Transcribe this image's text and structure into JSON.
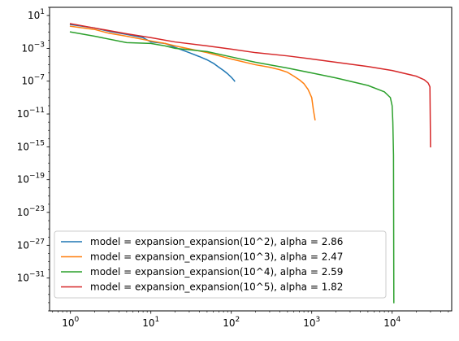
{
  "chart_data": {
    "type": "line",
    "xscale": "log",
    "yscale": "log",
    "xlim": [
      0.55,
      55000
    ],
    "ylim": [
      1e-35,
      100
    ],
    "grid": false,
    "legend_position": "lower-left",
    "x_ticks": [
      {
        "value": 1,
        "base": "10",
        "exp": "0"
      },
      {
        "value": 10,
        "base": "10",
        "exp": "1"
      },
      {
        "value": 100,
        "base": "10",
        "exp": "2"
      },
      {
        "value": 1000,
        "base": "10",
        "exp": "3"
      },
      {
        "value": 10000,
        "base": "10",
        "exp": "4"
      }
    ],
    "y_ticks": [
      {
        "value": 10,
        "base": "10",
        "exp": "1"
      },
      {
        "value": 0.001,
        "base": "10",
        "exp": "−3"
      },
      {
        "value": 1e-07,
        "base": "10",
        "exp": "−7"
      },
      {
        "value": 1e-11,
        "base": "10",
        "exp": "−11"
      },
      {
        "value": 1e-15,
        "base": "10",
        "exp": "−15"
      },
      {
        "value": 1e-19,
        "base": "10",
        "exp": "−19"
      },
      {
        "value": 1e-23,
        "base": "10",
        "exp": "−23"
      },
      {
        "value": 1e-27,
        "base": "10",
        "exp": "−27"
      },
      {
        "value": 1e-31,
        "base": "10",
        "exp": "−31"
      }
    ],
    "series": [
      {
        "name": "model = expansion_expansion(10^2), alpha = 2.86",
        "color": "#1f77b4",
        "x": [
          1,
          2,
          3,
          5,
          8,
          10,
          15,
          20,
          30,
          40,
          50,
          60,
          70,
          80,
          90,
          100,
          108,
          110
        ],
        "y": [
          0.8,
          0.3,
          0.12,
          0.05,
          0.02,
          0.006,
          0.004,
          0.0013,
          0.0003,
          0.0001,
          4e-05,
          1.5e-05,
          5e-06,
          2e-06,
          8e-07,
          3e-07,
          1.3e-07,
          1e-07
        ]
      },
      {
        "name": "model = expansion_expansion(10^3), alpha = 2.47",
        "color": "#ff7f0e",
        "x": [
          1,
          2,
          3,
          5,
          10,
          15,
          20,
          50,
          100,
          200,
          300,
          400,
          500,
          600,
          700,
          800,
          900,
          1000,
          1050,
          1100
        ],
        "y": [
          0.5,
          0.2,
          0.07,
          0.03,
          0.008,
          0.004,
          0.002,
          0.0003,
          5e-05,
          1e-05,
          5e-06,
          2.5e-06,
          1.2e-06,
          4e-07,
          1.5e-07,
          5e-08,
          1e-08,
          1e-09,
          3e-11,
          2e-12
        ]
      },
      {
        "name": "model = expansion_expansion(10^4), alpha = 2.59",
        "color": "#2ca02c",
        "x": [
          1,
          2,
          5,
          10,
          15,
          20,
          50,
          100,
          200,
          500,
          1000,
          2000,
          5000,
          8000,
          9500,
          10000,
          10200,
          10400,
          10500
        ],
        "y": [
          0.1,
          0.03,
          0.005,
          0.004,
          0.002,
          0.001,
          0.0004,
          9e-05,
          2e-05,
          4e-06,
          1e-06,
          2.5e-07,
          3e-08,
          5e-09,
          1e-09,
          1e-10,
          1e-12,
          1e-16,
          1e-34
        ]
      },
      {
        "name": "model = expansion_expansion(10^5), alpha = 1.82",
        "color": "#d62728",
        "x": [
          1,
          2,
          5,
          10,
          20,
          50,
          100,
          200,
          500,
          1000,
          2000,
          5000,
          10000,
          20000,
          25000,
          28000,
          29000,
          29500,
          30000
        ],
        "y": [
          1.0,
          0.3,
          0.06,
          0.02,
          0.006,
          0.002,
          0.0008,
          0.0003,
          0.00012,
          5e-05,
          2e-05,
          6e-06,
          2e-06,
          4e-07,
          1.5e-07,
          6e-08,
          3e-08,
          2e-08,
          1e-15
        ]
      }
    ]
  }
}
